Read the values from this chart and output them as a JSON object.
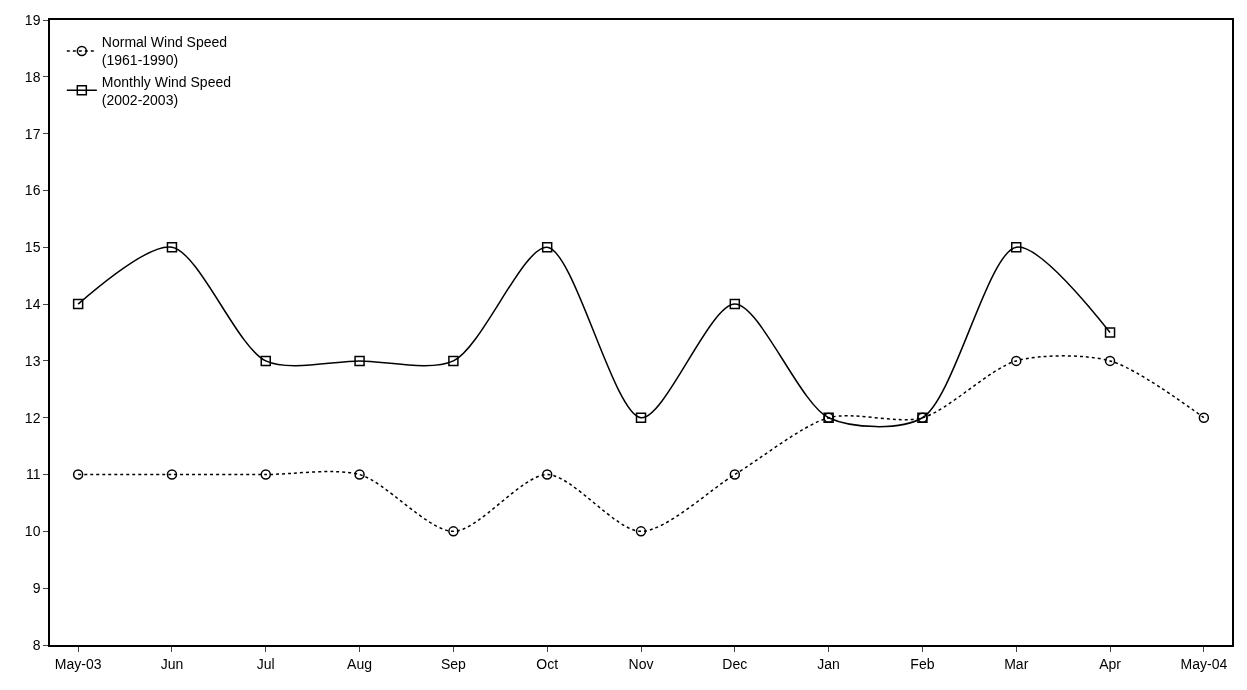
{
  "chart_data": {
    "type": "line",
    "categories": [
      "May-03",
      "Jun",
      "Jul",
      "Aug",
      "Sep",
      "Oct",
      "Nov",
      "Dec",
      "Jan",
      "Feb",
      "Mar",
      "Apr",
      "May-04"
    ],
    "series": [
      {
        "name": "Normal Wind Speed\n(1961-1990)",
        "color": "#000000",
        "marker": "circle",
        "line_style": "dotted",
        "values": [
          11,
          11,
          11,
          11,
          10,
          11,
          10,
          11,
          12,
          12,
          13,
          13,
          12
        ]
      },
      {
        "name": "Monthly Wind Speed\n(2002-2003)",
        "color": "#000000",
        "marker": "square",
        "line_style": "solid",
        "values": [
          14,
          15,
          13,
          13,
          13,
          15,
          12,
          14,
          12,
          12,
          15,
          13.5,
          null
        ]
      }
    ],
    "ylim": [
      8,
      19
    ],
    "yticks": [
      8,
      9,
      10,
      11,
      12,
      13,
      14,
      15,
      16,
      17,
      18,
      19
    ],
    "legend": "top left"
  }
}
